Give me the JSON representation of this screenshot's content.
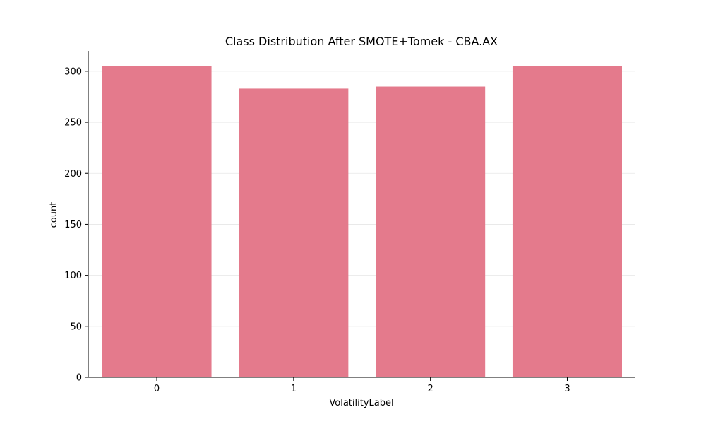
{
  "chart_data": {
    "type": "bar",
    "title": "Class Distribution After SMOTE+Tomek - CBA.AX",
    "xlabel": "VolatilityLabel",
    "ylabel": "count",
    "categories": [
      "0",
      "1",
      "2",
      "3"
    ],
    "values": [
      305,
      283,
      285,
      305
    ],
    "ylim": [
      0,
      320
    ],
    "yticks": [
      0,
      50,
      100,
      150,
      200,
      250,
      300
    ],
    "grid": true,
    "bar_color": "#e47a8c"
  }
}
